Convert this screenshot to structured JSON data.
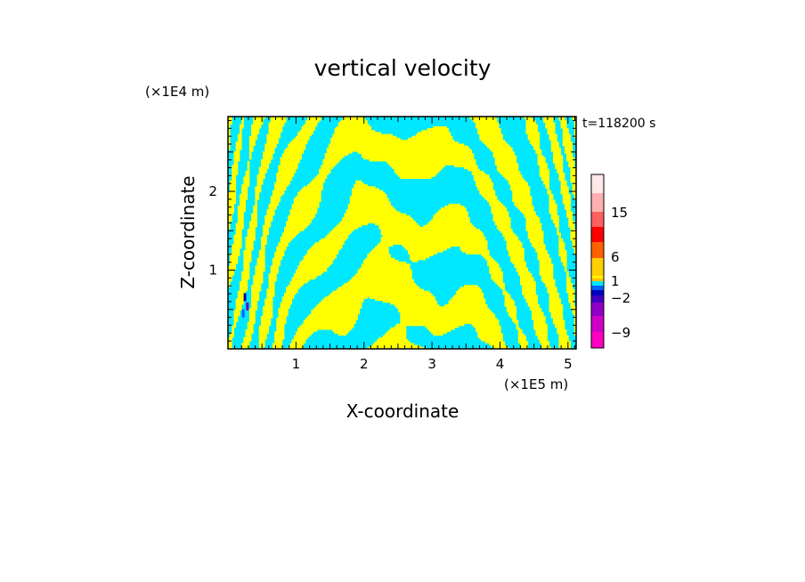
{
  "chart_data": {
    "type": "heatmap",
    "title": "vertical velocity",
    "xlabel": "X-coordinate",
    "ylabel": "Z-coordinate",
    "x_unit": "(×1E5 m)",
    "y_unit": "(×1E4 m)",
    "time_label": "t=118200 s",
    "xlim": [
      0,
      5.12
    ],
    "ylim": [
      0,
      2.95
    ],
    "x_ticks": [
      1,
      2,
      3,
      4,
      5
    ],
    "y_ticks": [
      1,
      2
    ],
    "dominant_values": [
      "cyan (-1 to 0)",
      "yellow (0 to 1)"
    ],
    "colorbar": {
      "ticks": [
        {
          "value": 15,
          "label": "15"
        },
        {
          "value": 6,
          "label": "6"
        },
        {
          "value": 1,
          "label": "1"
        },
        {
          "value": -2,
          "label": "−2"
        },
        {
          "value": -9,
          "label": "−9"
        }
      ],
      "colors": [
        "#ff00c0",
        "#d000c8",
        "#9000c8",
        "#4000c0",
        "#0000c0",
        "#0060ff",
        "#00e8ff",
        "#ffff00",
        "#ffd000",
        "#ff6000",
        "#ff0000",
        "#ff6060",
        "#ffb0b0",
        "#ffe8e8"
      ]
    }
  }
}
